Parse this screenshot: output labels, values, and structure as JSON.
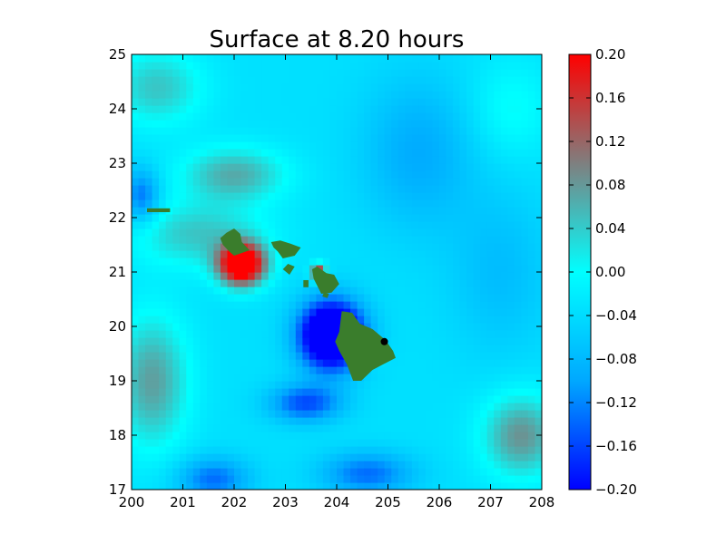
{
  "chart_data": {
    "type": "heatmap",
    "title": "Surface at 8.20 hours",
    "xlabel": "",
    "ylabel": "",
    "xlim": [
      200,
      208
    ],
    "ylim": [
      17,
      25
    ],
    "x_ticks": [
      "200",
      "201",
      "202",
      "203",
      "204",
      "205",
      "206",
      "207",
      "208"
    ],
    "y_ticks": [
      "17",
      "18",
      "19",
      "20",
      "21",
      "22",
      "23",
      "24",
      "25"
    ],
    "colorbar": {
      "range": [
        -0.2,
        0.2
      ],
      "tick_labels": [
        "0.20",
        "0.16",
        "0.12",
        "0.08",
        "0.04",
        "0.00",
        "−0.04",
        "−0.08",
        "−0.12",
        "−0.16",
        "−0.20"
      ],
      "colors": {
        "-0.20": "#0000ff",
        "-0.10": "#00a8ff",
        "0.00": "#00ffff",
        "0.10": "#7f7f7f",
        "0.20": "#ff0000"
      }
    },
    "land_color": "#3a7d2c",
    "marker": {
      "lon": 204.93,
      "lat": 19.72,
      "color": "#000000"
    },
    "features": [
      {
        "type": "negative-anomaly",
        "lon": 203.9,
        "lat": 19.9,
        "amplitude": -0.2
      },
      {
        "type": "positive-anomaly",
        "lon": 202.2,
        "lat": 21.15,
        "amplitude": 0.2
      },
      {
        "type": "positive-anomaly",
        "lon": 207.7,
        "lat": 18.0,
        "amplitude": 0.08
      },
      {
        "type": "positive-anomaly",
        "lon": 200.5,
        "lat": 19.2,
        "amplitude": 0.06
      }
    ]
  }
}
